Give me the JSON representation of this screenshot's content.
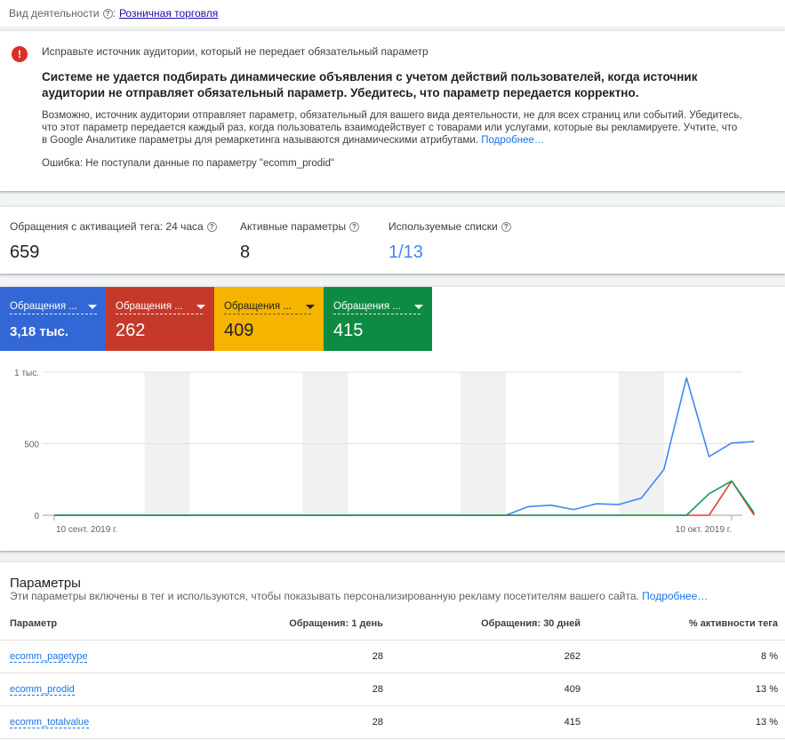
{
  "business": {
    "label": "Вид деятельности",
    "value": "Розничная торговля"
  },
  "alert": {
    "title": "Исправьте источник аудитории, который не передает обязательный параметр",
    "headline": "Системе не удается подбирать динамические объявления с учетом действий пользователей, когда источник аудитории не отправляет обязательный параметр. Убедитесь, что параметр передается корректно.",
    "body": "Возможно, источник аудитории отправляет параметр, обязательный для вашего вида деятельности, не для всех страниц или событий. Убедитесь, что этот параметр передается каждый раз, когда пользователь взаимодействует с товарами или услугами, которые вы рекламируете. Учтите, что в Google Аналитике параметры для ремаркетинга называются динамическими атрибутами.",
    "more": "Подробнее…",
    "error": "Ошибка: Не поступали данные по параметру \"ecomm_prodid\""
  },
  "stats": [
    {
      "label": "Обращения с активацией тега: 24 часа",
      "value": "659"
    },
    {
      "label": "Активные параметры",
      "value": "8"
    },
    {
      "label": "Используемые списки",
      "value": "1/13"
    }
  ],
  "tiles": [
    {
      "name": "Обращения ...",
      "value": "3,18 тыс.",
      "color": "#3367d6"
    },
    {
      "name": "Обращения ...",
      "value": "262",
      "color": "#c5392b"
    },
    {
      "name": "Обращения ...",
      "value": "409",
      "color": "#f4b400"
    },
    {
      "name": "Обращения ...",
      "value": "415",
      "color": "#0e8a43"
    }
  ],
  "chart_data": {
    "type": "line",
    "y_ticks": [
      "1 тыс.",
      "500",
      "0"
    ],
    "x_labels": [
      "10 сент. 2019 г.",
      "10 окт. 2019 г."
    ],
    "ylim": [
      0,
      1000
    ],
    "days": 31,
    "weekend_bands": [
      [
        4,
        6
      ],
      [
        11,
        13
      ],
      [
        18,
        20
      ],
      [
        25,
        27
      ]
    ],
    "series": [
      {
        "color": "#4285f4",
        "values": [
          0,
          0,
          0,
          0,
          0,
          0,
          0,
          0,
          0,
          0,
          0,
          0,
          0,
          0,
          0,
          0,
          0,
          0,
          0,
          0,
          0,
          60,
          70,
          40,
          80,
          75,
          120,
          320,
          960,
          410,
          505,
          515
        ]
      },
      {
        "color": "#db4437",
        "values": [
          0,
          0,
          0,
          0,
          0,
          0,
          0,
          0,
          0,
          0,
          0,
          0,
          0,
          0,
          0,
          0,
          0,
          0,
          0,
          0,
          0,
          0,
          0,
          0,
          0,
          0,
          0,
          0,
          0,
          0,
          240,
          0
        ]
      },
      {
        "color": "#0f9d58",
        "values": [
          0,
          0,
          0,
          0,
          0,
          0,
          0,
          0,
          0,
          0,
          0,
          0,
          0,
          0,
          0,
          0,
          0,
          0,
          0,
          0,
          0,
          0,
          0,
          0,
          0,
          0,
          0,
          0,
          0,
          150,
          240,
          15
        ]
      }
    ]
  },
  "params": {
    "title": "Параметры",
    "desc": "Эти параметры включены в тег и используются, чтобы показывать персонализированную рекламу посетителям вашего сайта.",
    "more": "Подробнее…",
    "headers": [
      "Параметр",
      "Обращения: 1 день",
      "Обращения: 30 дней",
      "% активности тега"
    ],
    "rows": [
      {
        "name": "ecomm_pagetype",
        "day": "28",
        "month": "262",
        "pct": "8 %"
      },
      {
        "name": "ecomm_prodid",
        "day": "28",
        "month": "409",
        "pct": "13 %"
      },
      {
        "name": "ecomm_totalvalue",
        "day": "28",
        "month": "415",
        "pct": "13 %"
      }
    ]
  }
}
